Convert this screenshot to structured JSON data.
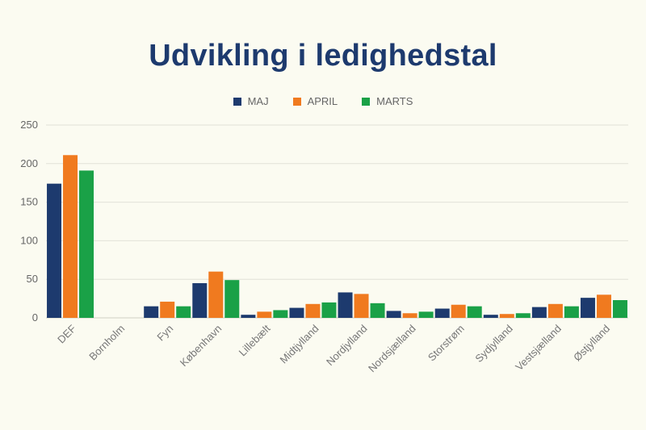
{
  "chart_data": {
    "type": "bar",
    "title": "Udvikling i ledighedstal",
    "xlabel": "",
    "ylabel": "",
    "ylim": [
      0,
      250
    ],
    "yticks": [
      0,
      50,
      100,
      150,
      200,
      250
    ],
    "grid": true,
    "legend_position": "top-center",
    "categories": [
      "DEF",
      "Bornholm",
      "Fyn",
      "København",
      "Lillebælt",
      "Midtjylland",
      "Nordjylland",
      "Nordsjælland",
      "Storstrøm",
      "Sydjylland",
      "Vestsjælland",
      "Østjylland"
    ],
    "series": [
      {
        "name": "MAJ",
        "color": "#1d3a6e",
        "values": [
          174,
          0,
          15,
          45,
          4,
          13,
          33,
          9,
          12,
          4,
          14,
          26
        ]
      },
      {
        "name": "APRIL",
        "color": "#f07a1f",
        "values": [
          211,
          0,
          21,
          60,
          8,
          18,
          31,
          6,
          17,
          5,
          18,
          30
        ]
      },
      {
        "name": "MARTS",
        "color": "#1aa147",
        "values": [
          191,
          0,
          15,
          49,
          10,
          20,
          19,
          8,
          15,
          6,
          15,
          23
        ]
      }
    ]
  }
}
